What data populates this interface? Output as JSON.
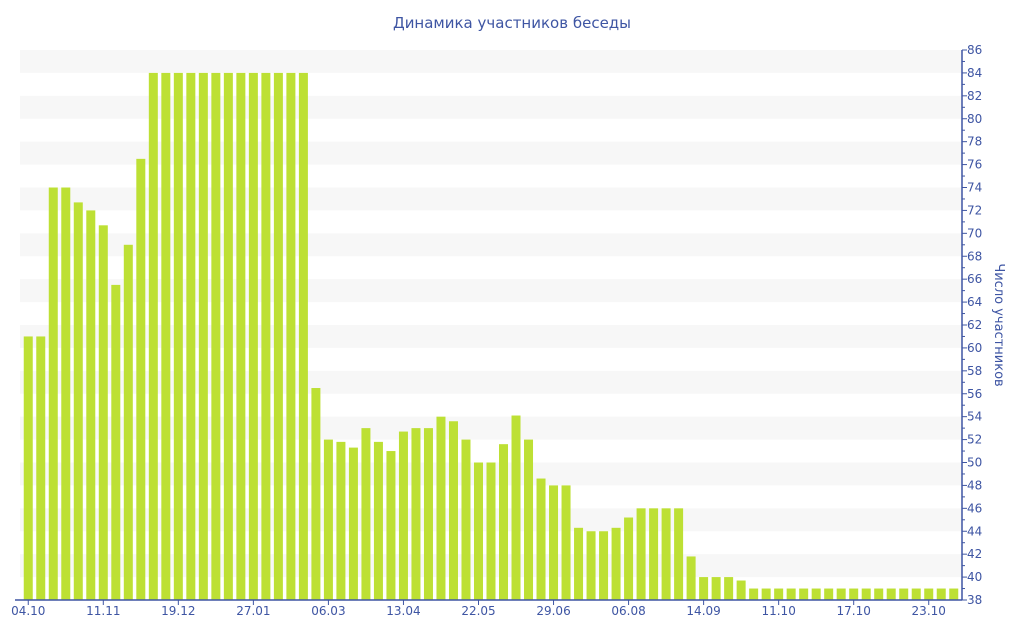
{
  "chart_data": {
    "type": "bar",
    "title": "Динамика участников беседы",
    "ylabel": "Число участников",
    "xlabel": "",
    "ylim": [
      38,
      86
    ],
    "ytick_step": 2,
    "grid": "alternating horizontal bands",
    "y_axis_position": "right",
    "bar_color": "#bde034",
    "axis_color": "#3e55a3",
    "band_color": "#f7f7f7",
    "x_tick_labels": [
      "04.10",
      "11.11",
      "19.12",
      "27.01",
      "06.03",
      "13.04",
      "22.05",
      "29.06",
      "06.08",
      "14.09",
      "11.10",
      "17.10",
      "23.10"
    ],
    "x_tick_every": 6,
    "values": [
      61,
      61,
      74,
      74,
      72.7,
      72,
      70.7,
      65.5,
      69,
      76.5,
      84,
      84,
      84,
      84,
      84,
      84,
      84,
      84,
      84,
      84,
      84,
      84,
      84,
      56.5,
      52,
      51.8,
      51.3,
      53,
      51.8,
      51,
      52.7,
      53,
      53,
      54,
      53.6,
      52,
      50,
      50,
      51.6,
      54.1,
      52,
      48.6,
      48,
      48,
      44.3,
      44,
      44,
      44.3,
      45.2,
      46,
      46,
      46,
      46,
      41.8,
      40,
      40,
      40,
      39.7,
      39,
      39,
      39,
      39,
      39,
      39,
      39,
      39,
      39,
      39,
      39,
      39,
      39,
      39,
      39,
      39,
      39
    ]
  }
}
